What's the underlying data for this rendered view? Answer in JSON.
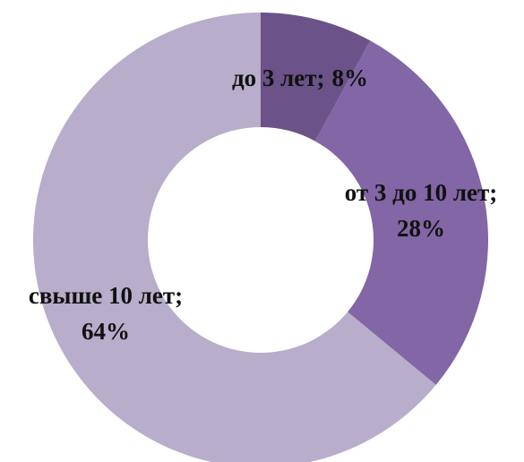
{
  "chart_data": {
    "type": "donut",
    "categories": [
      "до 3 лет;",
      "от 3 до 10 лет;",
      "свыше 10 лет;"
    ],
    "values": [
      8,
      28,
      64
    ],
    "value_labels": [
      "8%",
      "28%",
      "64%"
    ],
    "colors": [
      "#6b5289",
      "#8266a5",
      "#b8adcb"
    ]
  }
}
